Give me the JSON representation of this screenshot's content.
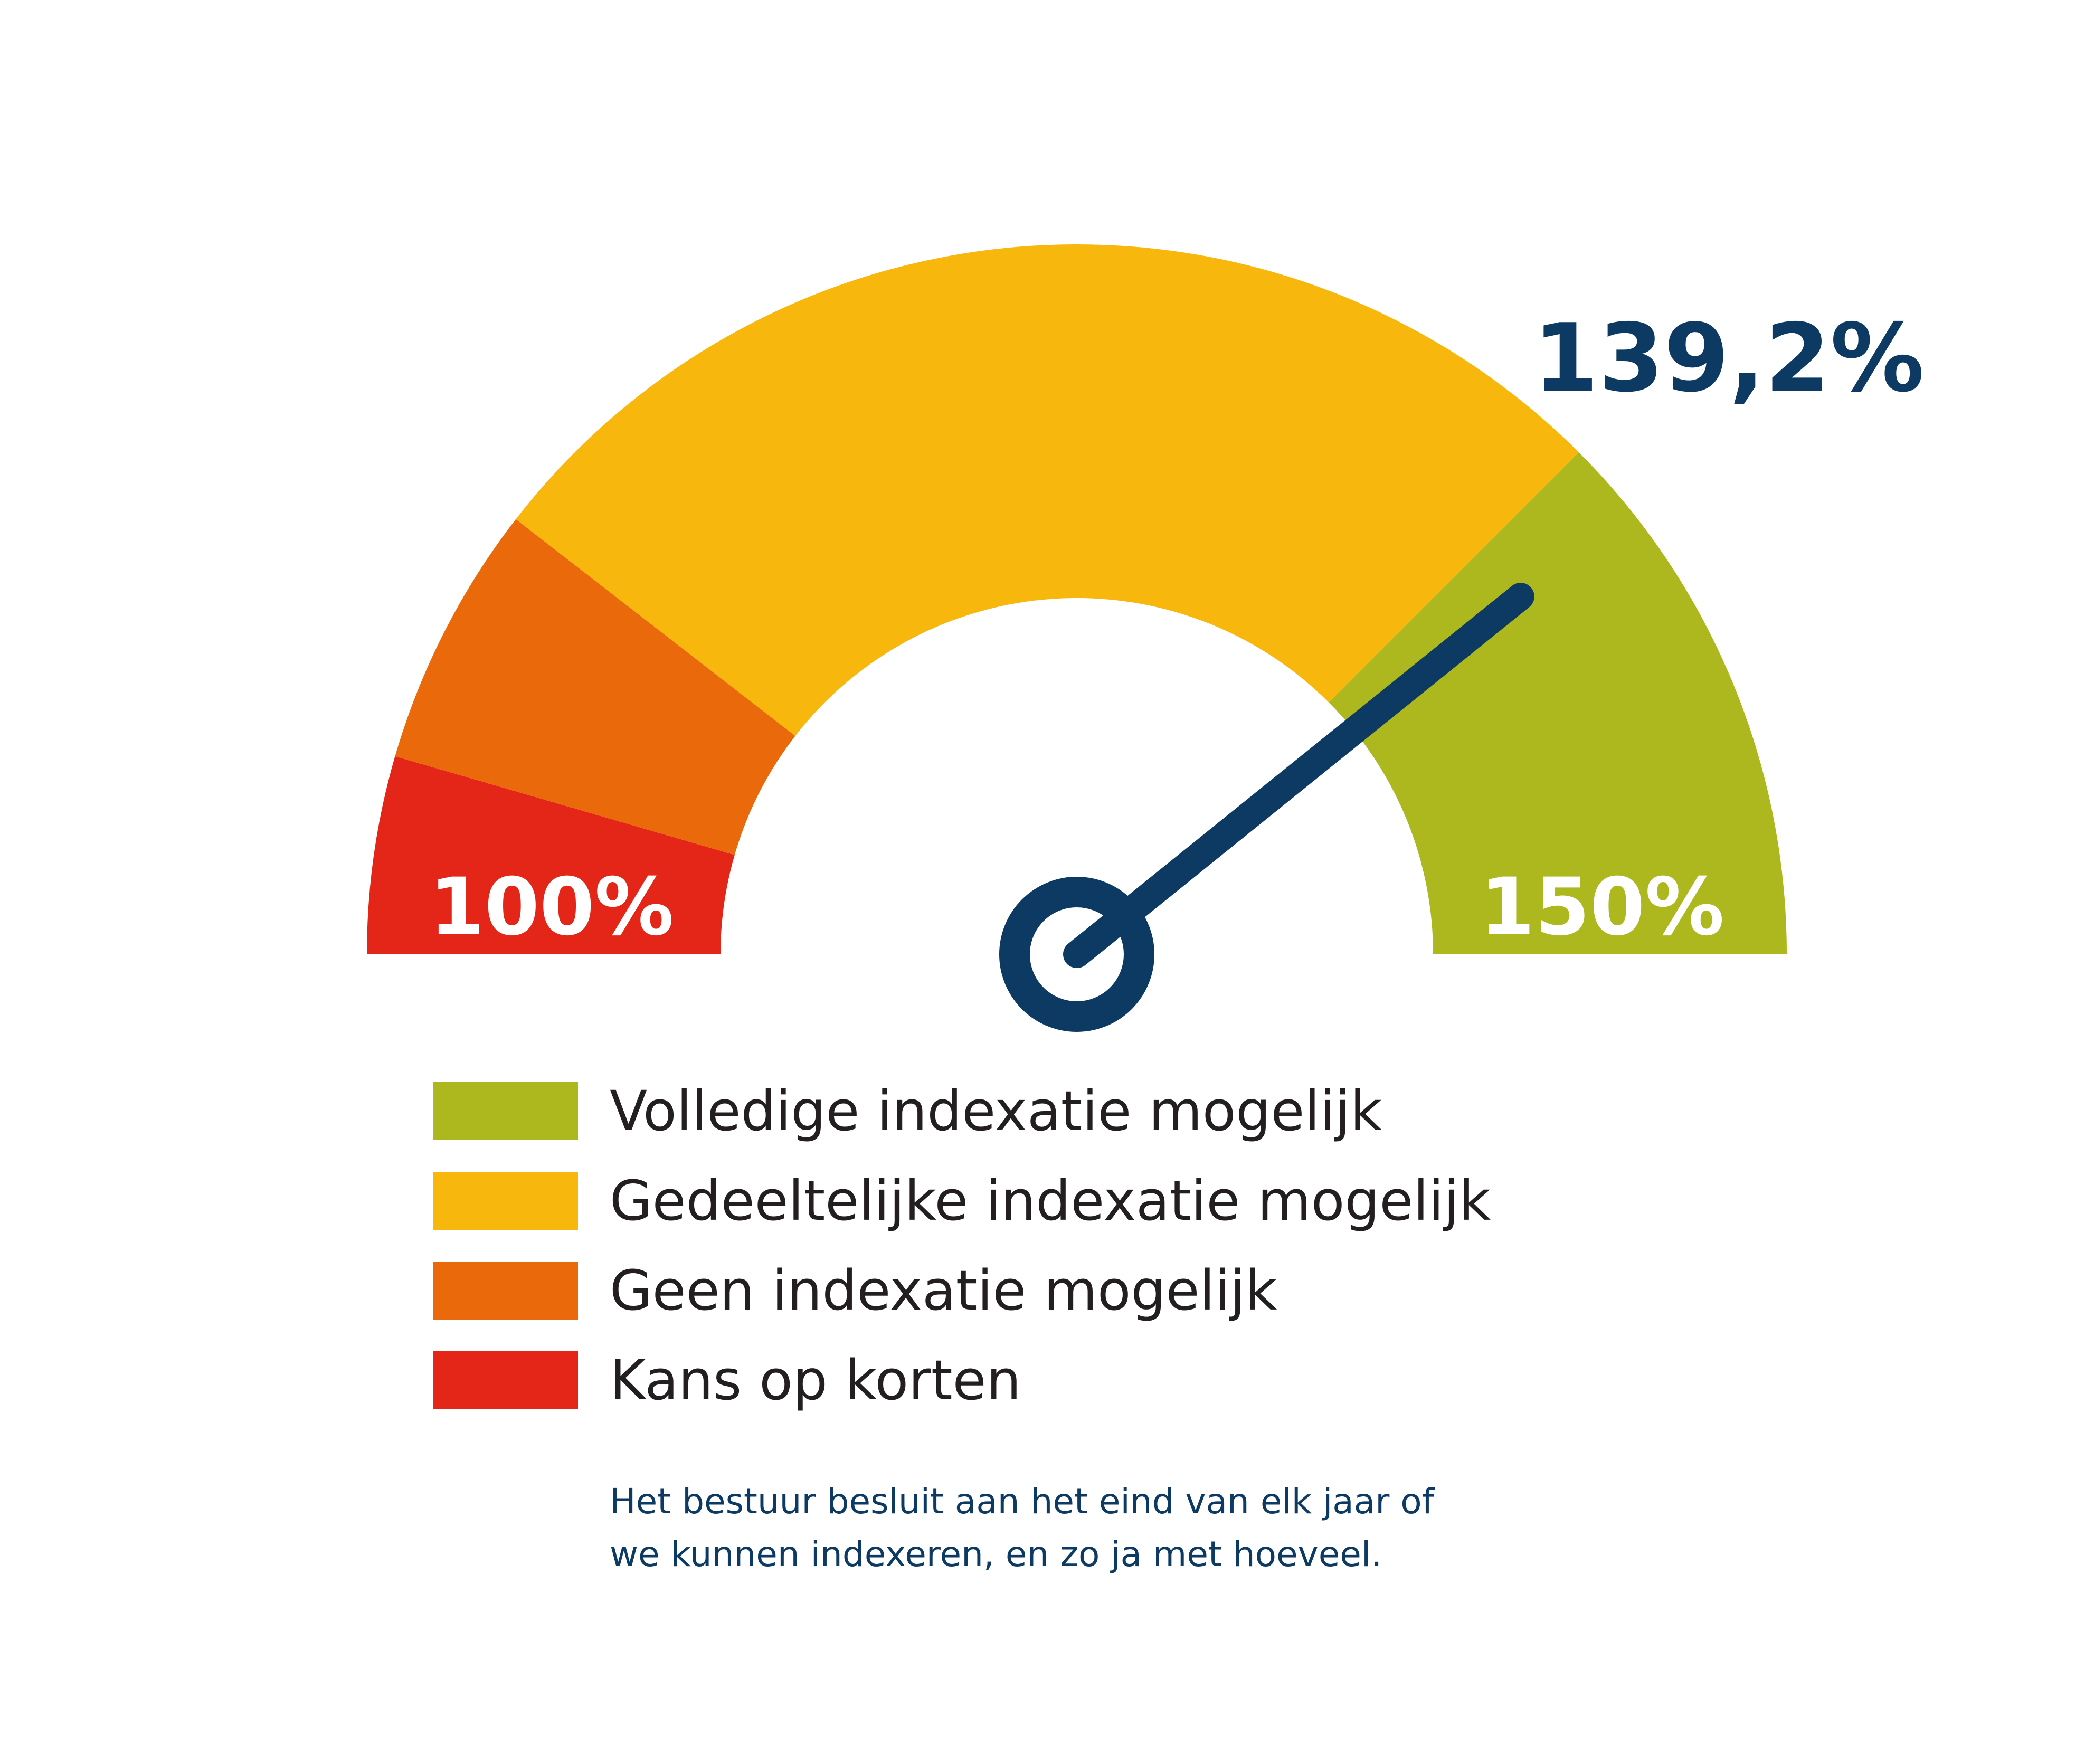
{
  "chart_data": {
    "type": "gauge",
    "min": 100,
    "max": 150,
    "min_label": "100%",
    "max_label": "150%",
    "value": 139.2,
    "value_label": "139,2%",
    "bands": [
      {
        "name": "Kans op korten",
        "from": 100,
        "to": 104.5,
        "color": "#e32618"
      },
      {
        "name": "Geen indexatie mogelijk",
        "from": 104.5,
        "to": 110.5,
        "color": "#ea6a0b"
      },
      {
        "name": "Gedeeltelijke indexatie mogelijk",
        "from": 110.5,
        "to": 137.5,
        "color": "#f8b70d"
      },
      {
        "name": "Volledige indexatie mogelijk",
        "from": 137.5,
        "to": 150,
        "color": "#acb81d"
      }
    ],
    "needle_color": "#0d3a63"
  },
  "legend": [
    {
      "label": "Volledige indexatie mogelijk",
      "color": "#acb81d"
    },
    {
      "label": "Gedeeltelijke indexatie mogelijk",
      "color": "#f8b70d"
    },
    {
      "label": "Geen indexatie mogelijk",
      "color": "#ea6a0b"
    },
    {
      "label": "Kans op korten",
      "color": "#e32618"
    }
  ],
  "note": {
    "line1": "Het bestuur besluit aan het eind van elk jaar of",
    "line2": "we kunnen indexeren, en zo ja met hoeveel."
  }
}
